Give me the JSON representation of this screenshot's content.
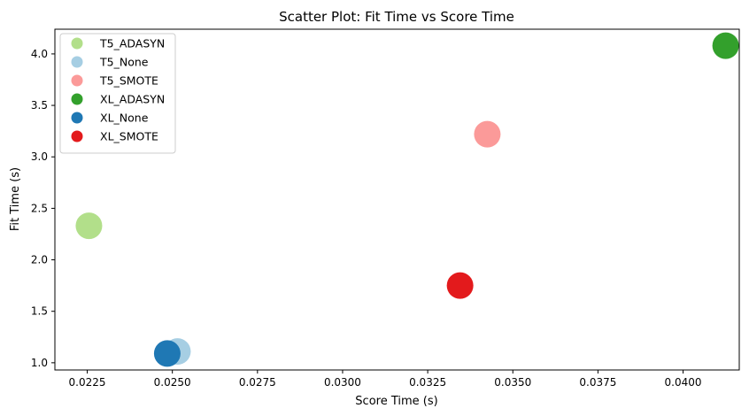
{
  "chart_data": {
    "type": "scatter",
    "title": "Scatter Plot: Fit Time vs Score Time",
    "xlabel": "Score Time (s)",
    "ylabel": "Fit Time (s)",
    "xlim": [
      0.02155,
      0.04165
    ],
    "ylim": [
      0.93,
      4.24
    ],
    "xticks": [
      "0.0225",
      "0.0250",
      "0.0275",
      "0.0300",
      "0.0325",
      "0.0350",
      "0.0375",
      "0.0400"
    ],
    "yticks": [
      "1.0",
      "1.5",
      "2.0",
      "2.5",
      "3.0",
      "3.5",
      "4.0"
    ],
    "grid": false,
    "legend_position": "top-left",
    "series": [
      {
        "name": "T5_ADASYN",
        "color": "#b2df8a",
        "points": [
          {
            "x": 0.02255,
            "y": 2.33
          }
        ]
      },
      {
        "name": "T5_None",
        "color": "#a6cee3",
        "points": [
          {
            "x": 0.02515,
            "y": 1.11
          }
        ]
      },
      {
        "name": "T5_SMOTE",
        "color": "#fb9a99",
        "points": [
          {
            "x": 0.03425,
            "y": 3.22
          }
        ]
      },
      {
        "name": "XL_ADASYN",
        "color": "#33a02c",
        "points": [
          {
            "x": 0.04125,
            "y": 4.08
          }
        ]
      },
      {
        "name": "XL_None",
        "color": "#1f78b4",
        "points": [
          {
            "x": 0.02485,
            "y": 1.09
          }
        ]
      },
      {
        "name": "XL_SMOTE",
        "color": "#e31a1c",
        "points": [
          {
            "x": 0.03345,
            "y": 1.75
          }
        ]
      }
    ]
  }
}
